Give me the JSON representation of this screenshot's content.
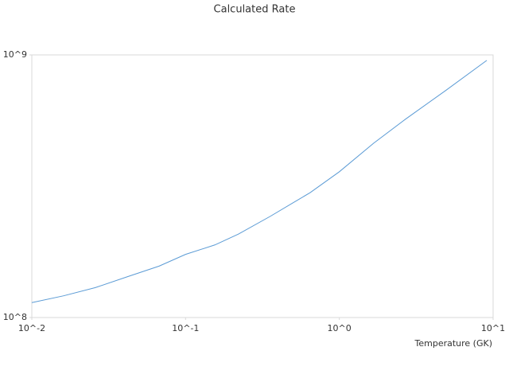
{
  "chart_data": {
    "type": "line",
    "title": "Calculated Rate",
    "x_label": "Temperature (GK)",
    "x_log": true,
    "y_log": true,
    "grid": false,
    "xlim": [
      0.01,
      10
    ],
    "ylim": [
      100000000,
      1000000000
    ],
    "xticks": [
      {
        "value": 0.01,
        "label": "10^-2"
      },
      {
        "value": 0.1,
        "label": "10^-1"
      },
      {
        "value": 1,
        "label": "10^0"
      },
      {
        "value": 10,
        "label": "10^1"
      }
    ],
    "yticks": [
      {
        "value": 100000000,
        "label": "10^8"
      },
      {
        "value": 1000000000,
        "label": "10^9"
      }
    ],
    "series": [
      {
        "color": "#5b9bd5",
        "x": [
          0.01,
          0.0161,
          0.0259,
          0.0418,
          0.0673,
          0.1,
          0.155,
          0.221,
          0.356,
          0.646,
          1.0,
          1.67,
          2.69,
          4.9,
          9.1
        ],
        "values": [
          114000000,
          121000000,
          130000000,
          143000000,
          157000000,
          174000000,
          189000000,
          208000000,
          243000000,
          299000000,
          359000000,
          461000000,
          569000000,
          731000000,
          953000000
        ]
      }
    ]
  }
}
